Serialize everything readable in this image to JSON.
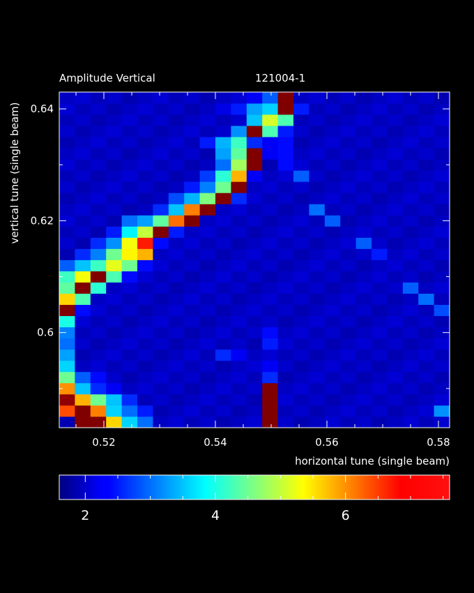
{
  "chart_data": {
    "type": "heatmap",
    "title": "Amplitude Vertical",
    "subtitle": "121004-1",
    "xlabel": "horizontal tune (single beam)",
    "ylabel": "vertical tune (single beam)",
    "xlim": [
      0.512,
      0.582
    ],
    "ylim": [
      0.583,
      0.643
    ],
    "x_ticks": [
      0.52,
      0.54,
      0.56,
      0.58
    ],
    "y_ticks": [
      0.6,
      0.62,
      0.64
    ],
    "x_tick_labels": [
      "0.52",
      "0.54",
      "0.56",
      "0.58"
    ],
    "y_tick_labels": [
      "0.6",
      "0.62",
      "0.64"
    ],
    "colorbar": {
      "range": [
        1.6,
        7.6
      ],
      "ticks": [
        2,
        4,
        6
      ],
      "tick_labels": [
        "2",
        "4",
        "6"
      ],
      "colormap": "jet"
    },
    "grid": false,
    "cells": {
      "x_start": 0.512,
      "x_step": 0.0028,
      "y_start": 0.583,
      "y_step": 0.002,
      "ncols": 25,
      "nrows": 30,
      "background_value": 2.0,
      "values": [
        [
          0,
          0,
          1.9
        ],
        [
          1,
          0,
          7.6
        ],
        [
          2,
          0,
          7.6
        ],
        [
          3,
          0,
          5.6
        ],
        [
          4,
          0,
          3.6
        ],
        [
          5,
          0,
          3.0
        ],
        [
          13,
          0,
          7.6
        ],
        [
          0,
          1,
          6.4
        ],
        [
          1,
          1,
          7.6
        ],
        [
          2,
          1,
          6.1
        ],
        [
          3,
          1,
          3.6
        ],
        [
          4,
          1,
          3.0
        ],
        [
          5,
          1,
          2.5
        ],
        [
          13,
          1,
          7.6
        ],
        [
          24,
          1,
          3.2
        ],
        [
          0,
          2,
          7.5
        ],
        [
          1,
          2,
          5.8
        ],
        [
          2,
          2,
          4.5
        ],
        [
          3,
          2,
          3.5
        ],
        [
          4,
          2,
          2.6
        ],
        [
          13,
          2,
          7.6
        ],
        [
          0,
          3,
          6.0
        ],
        [
          1,
          3,
          3.5
        ],
        [
          2,
          3,
          2.6
        ],
        [
          3,
          3,
          2.3
        ],
        [
          13,
          3,
          7.6
        ],
        [
          0,
          4,
          4.5
        ],
        [
          1,
          4,
          2.9
        ],
        [
          2,
          4,
          2.4
        ],
        [
          13,
          4,
          2.6
        ],
        [
          0,
          5,
          3.6
        ],
        [
          13,
          5,
          2.3
        ],
        [
          0,
          6,
          3.3
        ],
        [
          10,
          6,
          2.6
        ],
        [
          11,
          6,
          2.3
        ],
        [
          0,
          7,
          3.0
        ],
        [
          13,
          7,
          2.5
        ],
        [
          0,
          8,
          3.1
        ],
        [
          13,
          8,
          2.4
        ],
        [
          0,
          9,
          4.0
        ],
        [
          0,
          10,
          7.6
        ],
        [
          1,
          10,
          2.4
        ],
        [
          24,
          10,
          2.8
        ],
        [
          0,
          11,
          5.6
        ],
        [
          1,
          11,
          4.3
        ],
        [
          23,
          11,
          3.0
        ],
        [
          0,
          12,
          4.4
        ],
        [
          1,
          12,
          7.6
        ],
        [
          2,
          12,
          4.1
        ],
        [
          22,
          12,
          2.9
        ],
        [
          0,
          13,
          4.2
        ],
        [
          1,
          13,
          5.3
        ],
        [
          2,
          13,
          7.6
        ],
        [
          3,
          13,
          4.3
        ],
        [
          4,
          13,
          2.4
        ],
        [
          0,
          14,
          2.9
        ],
        [
          1,
          14,
          3.5
        ],
        [
          2,
          14,
          4.2
        ],
        [
          3,
          14,
          5.2
        ],
        [
          4,
          14,
          4.5
        ],
        [
          5,
          14,
          2.4
        ],
        [
          1,
          15,
          2.6
        ],
        [
          2,
          15,
          3.1
        ],
        [
          3,
          15,
          4.5
        ],
        [
          4,
          15,
          5.4
        ],
        [
          5,
          15,
          5.8
        ],
        [
          20,
          15,
          2.5
        ],
        [
          2,
          16,
          2.6
        ],
        [
          3,
          16,
          3.2
        ],
        [
          4,
          16,
          5.3
        ],
        [
          5,
          16,
          6.7
        ],
        [
          6,
          16,
          2.4
        ],
        [
          19,
          16,
          2.9
        ],
        [
          3,
          17,
          2.5
        ],
        [
          4,
          17,
          3.8
        ],
        [
          5,
          17,
          5.0
        ],
        [
          6,
          17,
          7.6
        ],
        [
          7,
          17,
          2.5
        ],
        [
          4,
          18,
          3.0
        ],
        [
          5,
          18,
          3.3
        ],
        [
          6,
          18,
          4.4
        ],
        [
          7,
          18,
          6.2
        ],
        [
          8,
          18,
          7.6
        ],
        [
          17,
          18,
          2.9
        ],
        [
          6,
          19,
          2.6
        ],
        [
          7,
          19,
          3.5
        ],
        [
          8,
          19,
          6.1
        ],
        [
          9,
          19,
          7.6
        ],
        [
          16,
          19,
          3.0
        ],
        [
          7,
          20,
          2.8
        ],
        [
          8,
          20,
          3.4
        ],
        [
          9,
          20,
          4.6
        ],
        [
          10,
          20,
          7.6
        ],
        [
          11,
          20,
          2.6
        ],
        [
          8,
          21,
          2.5
        ],
        [
          9,
          21,
          3.1
        ],
        [
          10,
          21,
          4.5
        ],
        [
          11,
          21,
          7.6
        ],
        [
          9,
          22,
          2.7
        ],
        [
          10,
          22,
          4.1
        ],
        [
          11,
          22,
          5.8
        ],
        [
          12,
          22,
          2.3
        ],
        [
          15,
          22,
          2.9
        ],
        [
          10,
          23,
          3.0
        ],
        [
          11,
          23,
          4.8
        ],
        [
          12,
          23,
          7.6
        ],
        [
          14,
          23,
          2.4
        ],
        [
          10,
          24,
          3.3
        ],
        [
          11,
          24,
          4.4
        ],
        [
          12,
          24,
          7.6
        ],
        [
          13,
          24,
          2.3
        ],
        [
          14,
          24,
          2.4
        ],
        [
          9,
          25,
          2.5
        ],
        [
          10,
          25,
          3.4
        ],
        [
          11,
          25,
          4.2
        ],
        [
          12,
          25,
          2.6
        ],
        [
          13,
          25,
          2.3
        ],
        [
          14,
          25,
          2.4
        ],
        [
          11,
          26,
          3.2
        ],
        [
          12,
          26,
          7.6
        ],
        [
          13,
          26,
          4.3
        ],
        [
          14,
          26,
          2.5
        ],
        [
          12,
          27,
          3.5
        ],
        [
          13,
          27,
          5.1
        ],
        [
          14,
          27,
          4.3
        ],
        [
          10,
          28,
          2.2
        ],
        [
          11,
          28,
          2.5
        ],
        [
          12,
          28,
          3.3
        ],
        [
          13,
          28,
          3.6
        ],
        [
          14,
          28,
          7.6
        ],
        [
          15,
          28,
          2.5
        ],
        [
          12,
          29,
          2.3
        ],
        [
          13,
          29,
          2.9
        ],
        [
          14,
          29,
          7.6
        ]
      ]
    }
  }
}
